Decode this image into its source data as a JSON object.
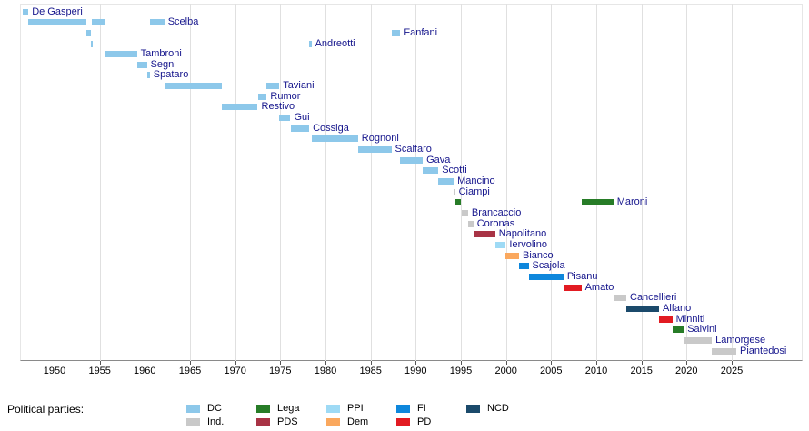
{
  "chart_data": {
    "type": "timeline",
    "title": "",
    "x_axis": {
      "min": 1946,
      "max": 2033,
      "ticks": [
        1950,
        1955,
        1960,
        1965,
        1970,
        1975,
        1980,
        1985,
        1990,
        1995,
        2000,
        2005,
        2010,
        2015,
        2020,
        2025
      ],
      "tick_labels": [
        "1950",
        "1955",
        "1960",
        "1965",
        "1970",
        "1975",
        "1980",
        "1985",
        "1990",
        "1995",
        "2000",
        "2005",
        "2010",
        "2015",
        "2020",
        "2025"
      ],
      "grid": true
    },
    "parties": {
      "DC": "#8dc8ea",
      "Ind.": "#c9c9c9",
      "Lega": "#277c27",
      "PDS": "#a83345",
      "PPI": "#9edaf5",
      "Dem": "#faa85e",
      "FI": "#0e87dc",
      "PD": "#e21b22",
      "NCD": "#1b4a6b"
    },
    "legend": {
      "label": "Political parties:",
      "columns": [
        [
          "DC",
          "Ind."
        ],
        [
          "Lega",
          "PDS"
        ],
        [
          "PPI",
          "Dem"
        ],
        [
          "FI",
          "PD"
        ],
        [
          "NCD"
        ]
      ]
    },
    "label_color": "#15158c",
    "ministers": [
      {
        "name": "De Gasperi",
        "party": "DC",
        "terms": [
          [
            1946.5,
            1947.1
          ]
        ]
      },
      {
        "name": "Scelba",
        "party": "DC",
        "terms": [
          [
            1947.1,
            1953.55
          ],
          [
            1954.1,
            1955.5
          ],
          [
            1960.55,
            1962.15
          ]
        ]
      },
      {
        "name": "Fanfani",
        "party": "DC",
        "terms": [
          [
            1953.55,
            1954.05
          ],
          [
            1987.3,
            1988.3
          ]
        ]
      },
      {
        "name": "Andreotti",
        "party": "DC",
        "terms": [
          [
            1954.05,
            1954.2
          ],
          [
            1978.2,
            1978.45
          ]
        ]
      },
      {
        "name": "Tambroni",
        "party": "DC",
        "terms": [
          [
            1955.5,
            1959.12
          ]
        ]
      },
      {
        "name": "Segni",
        "party": "DC",
        "terms": [
          [
            1959.12,
            1960.23
          ]
        ]
      },
      {
        "name": "Spataro",
        "party": "DC",
        "terms": [
          [
            1960.23,
            1960.55
          ]
        ]
      },
      {
        "name": "Taviani",
        "party": "DC",
        "terms": [
          [
            1962.15,
            1968.48
          ],
          [
            1973.5,
            1974.9
          ]
        ]
      },
      {
        "name": "Rumor",
        "party": "DC",
        "terms": [
          [
            1972.5,
            1973.5
          ]
        ]
      },
      {
        "name": "Restivo",
        "party": "DC",
        "terms": [
          [
            1968.48,
            1972.5
          ]
        ]
      },
      {
        "name": "Gui",
        "party": "DC",
        "terms": [
          [
            1974.9,
            1976.12
          ]
        ]
      },
      {
        "name": "Cossiga",
        "party": "DC",
        "terms": [
          [
            1976.12,
            1978.2
          ]
        ]
      },
      {
        "name": "Rognoni",
        "party": "DC",
        "terms": [
          [
            1978.45,
            1983.6
          ]
        ]
      },
      {
        "name": "Scalfaro",
        "party": "DC",
        "terms": [
          [
            1983.6,
            1987.3
          ]
        ]
      },
      {
        "name": "Gava",
        "party": "DC",
        "terms": [
          [
            1988.3,
            1990.78
          ]
        ]
      },
      {
        "name": "Scotti",
        "party": "DC",
        "terms": [
          [
            1990.78,
            1992.5
          ]
        ]
      },
      {
        "name": "Mancino",
        "party": "DC",
        "terms": [
          [
            1992.5,
            1994.2
          ]
        ]
      },
      {
        "name": "Ciampi",
        "party": "Ind.",
        "terms": [
          [
            1994.2,
            1994.36
          ]
        ]
      },
      {
        "name": "Maroni",
        "party": "Lega",
        "terms": [
          [
            1994.36,
            1995.05
          ],
          [
            2008.35,
            2011.88
          ]
        ]
      },
      {
        "name": "Brancaccio",
        "party": "Ind.",
        "terms": [
          [
            1995.05,
            1995.8
          ]
        ]
      },
      {
        "name": "Coronas",
        "party": "Ind.",
        "terms": [
          [
            1995.8,
            1996.38
          ]
        ]
      },
      {
        "name": "Napolitano",
        "party": "PDS",
        "terms": [
          [
            1996.38,
            1998.8
          ]
        ]
      },
      {
        "name": "Iervolino",
        "party": "PPI",
        "terms": [
          [
            1998.8,
            1999.97
          ]
        ]
      },
      {
        "name": "Bianco",
        "party": "Dem",
        "terms": [
          [
            1999.97,
            2001.44
          ]
        ]
      },
      {
        "name": "Scajola",
        "party": "FI",
        "terms": [
          [
            2001.44,
            2002.5
          ]
        ]
      },
      {
        "name": "Pisanu",
        "party": "FI",
        "terms": [
          [
            2002.5,
            2006.37
          ]
        ]
      },
      {
        "name": "Amato",
        "party": "PD",
        "terms": [
          [
            2006.37,
            2008.35
          ]
        ]
      },
      {
        "name": "Cancellieri",
        "party": "Ind.",
        "terms": [
          [
            2011.88,
            2013.32
          ]
        ]
      },
      {
        "name": "Alfano",
        "party": "NCD",
        "terms": [
          [
            2013.32,
            2016.95
          ]
        ]
      },
      {
        "name": "Minniti",
        "party": "PD",
        "terms": [
          [
            2016.95,
            2018.42
          ]
        ]
      },
      {
        "name": "Salvini",
        "party": "Lega",
        "terms": [
          [
            2018.42,
            2019.68
          ]
        ]
      },
      {
        "name": "Lamorgese",
        "party": "Ind.",
        "terms": [
          [
            2019.68,
            2022.8
          ]
        ]
      },
      {
        "name": "Piantedosi",
        "party": "Ind.",
        "terms": [
          [
            2022.8,
            2025.5
          ]
        ]
      }
    ]
  }
}
